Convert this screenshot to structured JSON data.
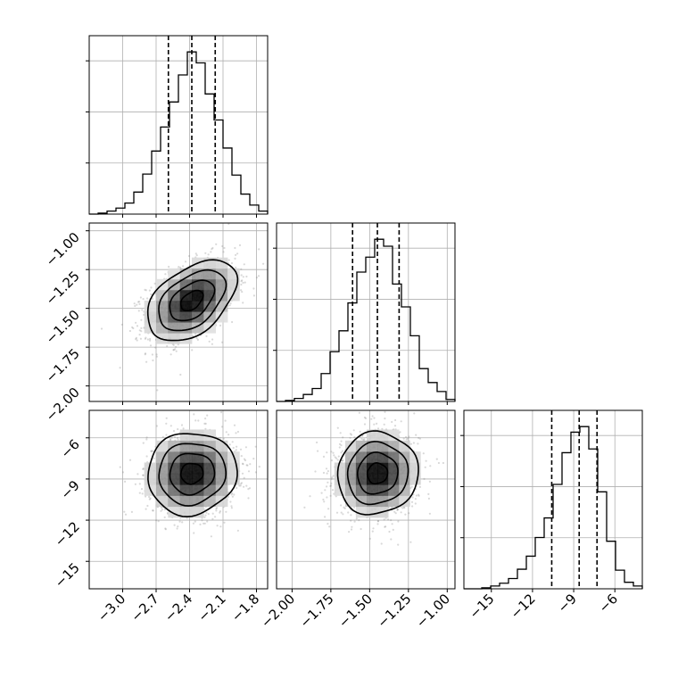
{
  "chart_data": {
    "type": "corner",
    "parameters": [
      {
        "range": [
          -3.3,
          -1.7
        ],
        "ticks": [
          -3.0,
          -2.7,
          -2.4,
          -2.1,
          -1.8
        ],
        "tick_labels": [
          "−3.0",
          "−2.7",
          "−2.4",
          "−2.1",
          "−1.8"
        ],
        "mean": -2.38,
        "sigma": 0.2,
        "quantiles": [
          -2.59,
          -2.38,
          -2.17
        ]
      },
      {
        "range": [
          -2.1,
          -0.95
        ],
        "ticks": [
          -2.0,
          -1.75,
          -1.5,
          -1.25,
          -1.0
        ],
        "tick_labels": [
          "−2.00",
          "−1.75",
          "−1.50",
          "−1.25",
          "−1.00"
        ],
        "mean": -1.45,
        "sigma": 0.13,
        "quantiles": [
          -1.61,
          -1.45,
          -1.31
        ]
      },
      {
        "range": [
          -17,
          -4
        ],
        "ticks": [
          -15,
          -12,
          -9,
          -6
        ],
        "tick_labels": [
          "−15",
          "−12",
          "−9",
          "−6"
        ],
        "mean": -8.6,
        "sigma": 1.5,
        "quantiles": [
          -10.6,
          -8.6,
          -7.3
        ]
      }
    ],
    "histograms": [
      {
        "parameter": 0,
        "bin_edges": [
          -3.3,
          -3.22,
          -3.14,
          -3.06,
          -2.98,
          -2.9,
          -2.82,
          -2.74,
          -2.66,
          -2.58,
          -2.5,
          -2.42,
          -2.34,
          -2.26,
          -2.18,
          -2.1,
          -2.02,
          -1.94,
          -1.86,
          -1.78,
          -1.7
        ],
        "counts": [
          0,
          1,
          3,
          6,
          11,
          22,
          40,
          63,
          87,
          112,
          139,
          162,
          151,
          120,
          94,
          66,
          39,
          20,
          9,
          3
        ]
      },
      {
        "parameter": 1,
        "bin_edges": [
          -2.1,
          -2.0425,
          -1.985,
          -1.9275,
          -1.87,
          -1.8125,
          -1.755,
          -1.6975,
          -1.64,
          -1.5825,
          -1.525,
          -1.4675,
          -1.41,
          -1.3525,
          -1.295,
          -1.2375,
          -1.18,
          -1.1225,
          -1.065,
          -1.0075,
          -0.95
        ],
        "counts": [
          0,
          1,
          3,
          7,
          13,
          28,
          50,
          71,
          99,
          130,
          145,
          163,
          156,
          118,
          95,
          66,
          33,
          19,
          10,
          2
        ]
      },
      {
        "parameter": 2,
        "bin_edges": [
          -17,
          -16.35,
          -15.7,
          -15.05,
          -14.4,
          -13.75,
          -13.1,
          -12.45,
          -11.8,
          -11.15,
          -10.5,
          -9.85,
          -9.2,
          -8.55,
          -7.9,
          -7.25,
          -6.6,
          -5.95,
          -5.3,
          -4.65,
          -4
        ],
        "counts": [
          0,
          0,
          1,
          3,
          6,
          11,
          21,
          35,
          55,
          76,
          112,
          146,
          168,
          174,
          150,
          104,
          51,
          20,
          7,
          3
        ]
      }
    ],
    "joint": [
      {
        "x_parameter": 0,
        "y_parameter": 1,
        "correlation": 0.45,
        "contour_sigmas": [
          0.5,
          1.0,
          1.5,
          2.0
        ]
      },
      {
        "x_parameter": 0,
        "y_parameter": 2,
        "correlation": 0.05,
        "contour_sigmas": [
          0.5,
          1.0,
          1.5,
          2.0
        ]
      },
      {
        "x_parameter": 1,
        "y_parameter": 2,
        "correlation": 0.05,
        "contour_sigmas": [
          0.5,
          1.0,
          1.5,
          2.0
        ]
      }
    ],
    "grid": true,
    "colors": {
      "density": "#000000",
      "points": "#8a8a8a",
      "contour": "#000000",
      "grid": "#b0b0b0"
    }
  }
}
